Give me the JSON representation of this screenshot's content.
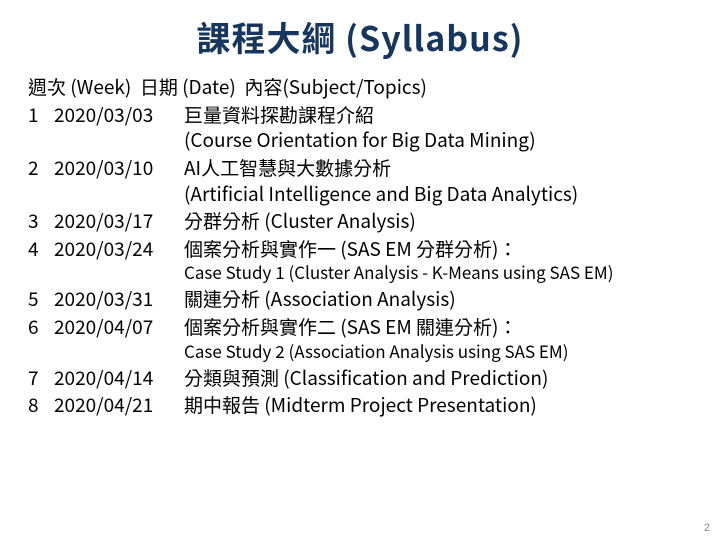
{
  "title": "課程大綱 (Syllabus)",
  "colors": {
    "title": "#17365d",
    "text": "#000000",
    "background": "#ffffff",
    "pagenum": "#888888"
  },
  "headers": {
    "week": "週次 (Week)",
    "date": "日期 (Date)",
    "topic": "內容(Subject/Topics)"
  },
  "rows": [
    {
      "week": "1",
      "date": "2020/03/03",
      "topic_a": "巨量資料探勘課程介紹",
      "topic_b": "(Course Orientation for Big Data Mining)"
    },
    {
      "week": "2",
      "date": "2020/03/10",
      "topic_a": "AI人工智慧與大數據分析",
      "topic_b": "(Artificial Intelligence and Big Data Analytics)"
    },
    {
      "week": "3",
      "date": "2020/03/17",
      "topic_a": "分群分析 (Cluster Analysis)",
      "topic_b": ""
    },
    {
      "week": "4",
      "date": "2020/03/24",
      "topic_a": "個案分析與實作一 (SAS EM 分群分析)：",
      "topic_b": "Case Study 1 (Cluster Analysis - K-Means using SAS EM)",
      "case": true
    },
    {
      "week": "5",
      "date": "2020/03/31",
      "topic_a": "關連分析 (Association Analysis)",
      "topic_b": ""
    },
    {
      "week": "6",
      "date": "2020/04/07",
      "topic_a": "個案分析與實作二 (SAS EM 關連分析)：",
      "topic_b": " Case Study 2 (Association Analysis using SAS EM)",
      "case": true
    },
    {
      "week": "7",
      "date": "2020/04/14",
      "topic_a": "分類與預測 (Classification and Prediction)",
      "topic_b": ""
    },
    {
      "week": "8",
      "date": "2020/04/21",
      "topic_a": "期中報告 (Midterm Project Presentation)",
      "topic_b": ""
    }
  ],
  "page_number": "2"
}
